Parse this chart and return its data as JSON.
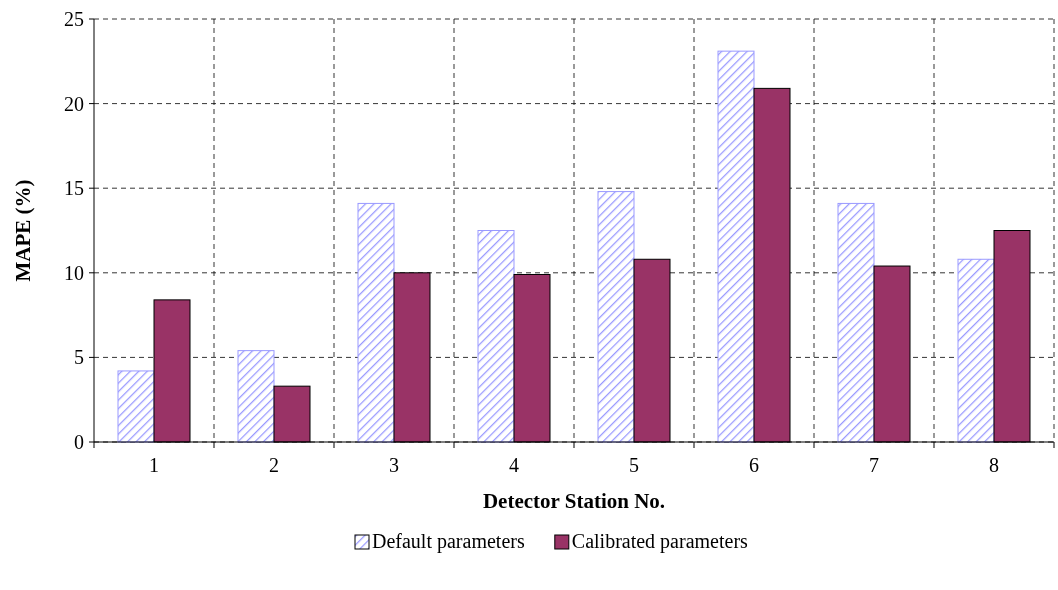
{
  "chart_data": {
    "type": "bar",
    "xlabel": "Detector Station No.",
    "ylabel": "MAPE (%)",
    "categories": [
      "1",
      "2",
      "3",
      "4",
      "5",
      "6",
      "7",
      "8"
    ],
    "series": [
      {
        "name": "Default parameters",
        "color": "#9999ff",
        "values": [
          4.2,
          5.4,
          14.1,
          12.5,
          14.8,
          23.1,
          14.1,
          10.8
        ]
      },
      {
        "name": "Calibrated parameters",
        "color": "#993366",
        "values": [
          8.4,
          3.3,
          10.0,
          9.9,
          10.8,
          20.9,
          10.4,
          12.5
        ]
      }
    ],
    "ylim": [
      0,
      25
    ],
    "yticks": [
      0,
      5,
      10,
      15,
      20,
      25
    ],
    "grid": true,
    "legend": "bottom"
  }
}
